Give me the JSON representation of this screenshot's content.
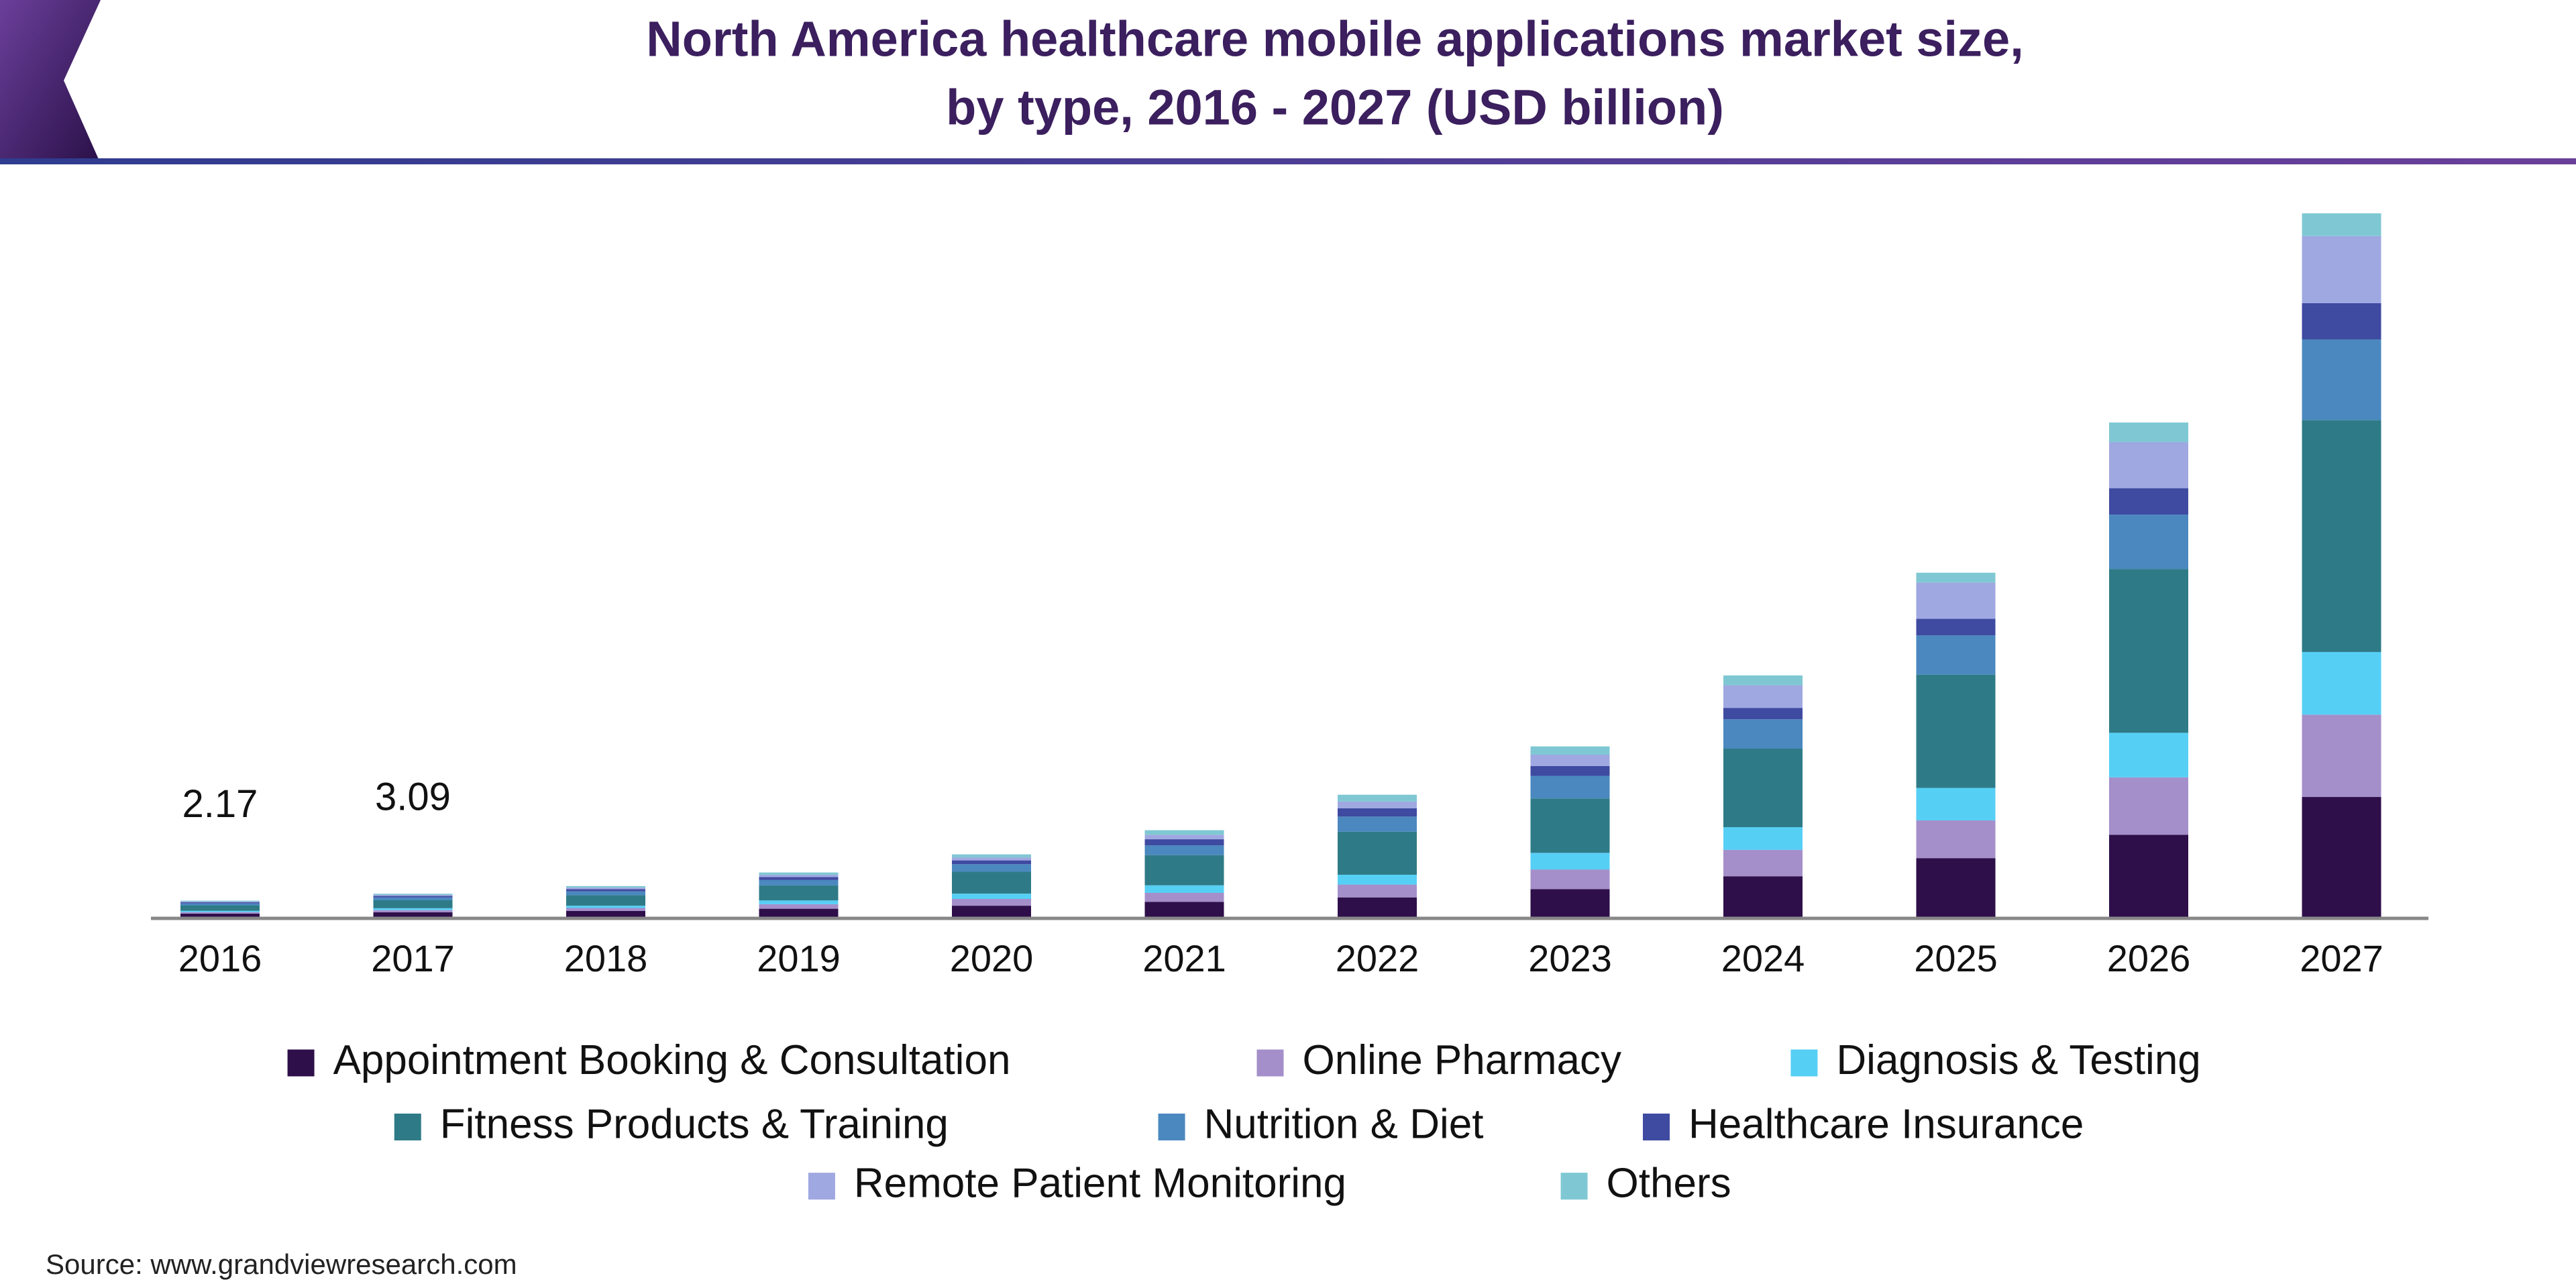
{
  "chart_data": {
    "type": "stacked_bar",
    "title": [
      "North America healthcare mobile applications market size,",
      "by type, 2016 - 2027 (USD billion)"
    ],
    "categories": [
      "2016",
      "2017",
      "2018",
      "2019",
      "2020",
      "2021",
      "2022",
      "2023",
      "2024",
      "2025",
      "2026",
      "2027"
    ],
    "series": [
      {
        "name": "Appointment Booking & Consultation",
        "color": "#2e0f4a",
        "values": [
          0.45,
          0.62,
          0.8,
          1.1,
          1.5,
          2.0,
          2.6,
          3.7,
          5.4,
          7.8,
          10.9,
          15.9
        ]
      },
      {
        "name": "Online Pharmacy",
        "color": "#a48fca",
        "values": [
          0.2,
          0.3,
          0.4,
          0.6,
          0.9,
          1.2,
          1.7,
          2.6,
          3.5,
          5.0,
          7.6,
          10.9
        ]
      },
      {
        "name": "Diagnosis & Testing",
        "color": "#56cff5",
        "values": [
          0.17,
          0.25,
          0.3,
          0.5,
          0.7,
          1.0,
          1.3,
          2.2,
          3.0,
          4.3,
          5.9,
          8.3
        ]
      },
      {
        "name": "Fitness Products & Training",
        "color": "#2e7b87",
        "values": [
          0.73,
          1.05,
          1.4,
          2.0,
          2.9,
          4.0,
          5.7,
          7.2,
          10.4,
          15.0,
          21.7,
          30.7
        ]
      },
      {
        "name": "Nutrition & Diet",
        "color": "#4a88bf",
        "values": [
          0.26,
          0.37,
          0.5,
          0.7,
          1.0,
          1.3,
          2.0,
          3.0,
          3.9,
          5.2,
          7.2,
          10.7
        ]
      },
      {
        "name": "Healthcare Insurance",
        "color": "#3f4aa1",
        "values": [
          0.14,
          0.2,
          0.3,
          0.4,
          0.5,
          0.8,
          1.1,
          1.3,
          1.5,
          2.2,
          3.5,
          4.8
        ]
      },
      {
        "name": "Remote Patient Monitoring",
        "color": "#9fa8e0",
        "values": [
          0.11,
          0.15,
          0.2,
          0.3,
          0.4,
          0.6,
          0.9,
          1.5,
          3.0,
          4.8,
          6.1,
          8.9
        ]
      },
      {
        "name": "Others",
        "color": "#7fc8d3",
        "values": [
          0.11,
          0.15,
          0.2,
          0.3,
          0.4,
          0.6,
          0.9,
          1.1,
          1.3,
          1.3,
          2.6,
          3.0
        ]
      }
    ],
    "totals": [
      2.17,
      3.09,
      null,
      null,
      null,
      null,
      null,
      null,
      null,
      null,
      null,
      null
    ],
    "source": "Source: www.grandviewresearch.com"
  }
}
